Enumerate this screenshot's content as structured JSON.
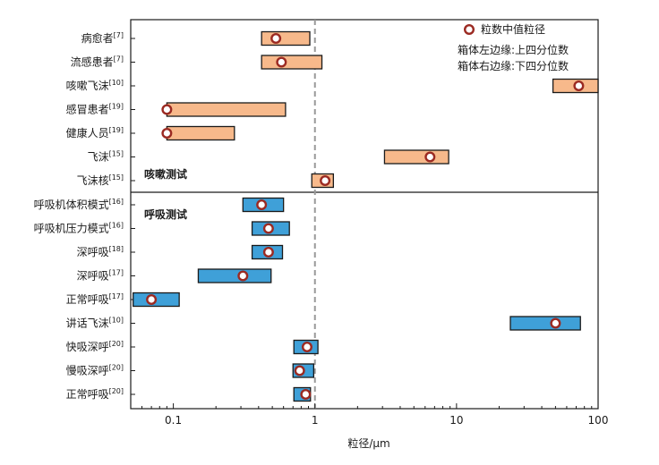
{
  "chart_data": {
    "type": "range-box",
    "xlabel": "粒径/μm",
    "x_scale": "log",
    "xlim": [
      0.05,
      100
    ],
    "x_ticks": [
      {
        "value": 0.1,
        "label": "0.1"
      },
      {
        "value": 1,
        "label": "1"
      },
      {
        "value": 10,
        "label": "10"
      },
      {
        "value": 100,
        "label": "100"
      }
    ],
    "reference_line": {
      "x": 1,
      "style": "dashed",
      "color": "#999999"
    },
    "legend": {
      "position": "top-right",
      "marker_label": "粒数中值粒径",
      "notes": [
        "箱体左边缘:上四分位数",
        "箱体右边缘:下四分位数"
      ]
    },
    "groups": [
      {
        "name": "咳嗽测试",
        "color": "#f7b98b",
        "rows": [
          {
            "label": "病愈者",
            "ref": "[7]",
            "q_low": 0.42,
            "median": 0.53,
            "q_high": 0.92
          },
          {
            "label": "流感患者",
            "ref": "[7]",
            "q_low": 0.42,
            "median": 0.58,
            "q_high": 1.12
          },
          {
            "label": "咳嗽飞沫",
            "ref": "[10]",
            "q_low": 48,
            "median": 73,
            "q_high": 100
          },
          {
            "label": "感冒患者",
            "ref": "[19]",
            "q_low": 0.09,
            "median": 0.09,
            "q_high": 0.62
          },
          {
            "label": "健康人员",
            "ref": "[19]",
            "q_low": 0.09,
            "median": 0.09,
            "q_high": 0.27
          },
          {
            "label": "飞沫",
            "ref": "[15]",
            "q_low": 3.1,
            "median": 6.5,
            "q_high": 8.8
          },
          {
            "label": "飞沫核",
            "ref": "[15]",
            "q_low": 0.95,
            "median": 1.18,
            "q_high": 1.35
          }
        ]
      },
      {
        "name": "呼吸测试",
        "color": "#3fa0d8",
        "rows": [
          {
            "label": "呼吸机体积模式",
            "ref": "[16]",
            "q_low": 0.31,
            "median": 0.42,
            "q_high": 0.6
          },
          {
            "label": "呼吸机压力模式",
            "ref": "[16]",
            "q_low": 0.36,
            "median": 0.47,
            "q_high": 0.66
          },
          {
            "label": "深呼吸",
            "ref": "[18]",
            "q_low": 0.36,
            "median": 0.47,
            "q_high": 0.59
          },
          {
            "label": "深呼吸",
            "ref": "[17]",
            "q_low": 0.15,
            "median": 0.31,
            "q_high": 0.49
          },
          {
            "label": "正常呼吸",
            "ref": "[17]",
            "q_low": 0.052,
            "median": 0.07,
            "q_high": 0.11
          },
          {
            "label": "讲话飞沫",
            "ref": "[10]",
            "q_low": 24,
            "median": 50,
            "q_high": 75
          },
          {
            "label": "快吸深呼",
            "ref": "[20]",
            "q_low": 0.71,
            "median": 0.88,
            "q_high": 1.05
          },
          {
            "label": "慢吸深呼",
            "ref": "[20]",
            "q_low": 0.7,
            "median": 0.78,
            "q_high": 0.98
          },
          {
            "label": "正常呼吸",
            "ref": "[20]",
            "q_low": 0.71,
            "median": 0.86,
            "q_high": 0.93
          }
        ]
      }
    ],
    "marker_color": "#9b2a22"
  }
}
